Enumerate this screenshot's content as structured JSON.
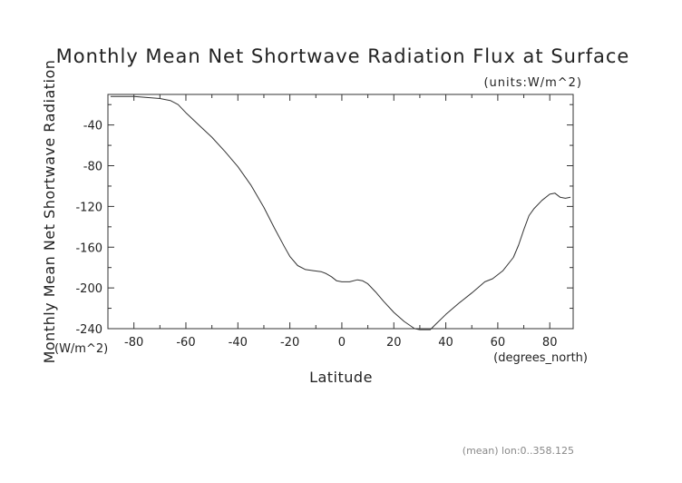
{
  "chart_data": {
    "type": "line",
    "title": "Monthly Mean Net Shortwave Radiation Flux at Surface",
    "units_note": "(units:W/m^2)",
    "xlabel": "Latitude",
    "x_unit": "(degrees_north)",
    "ylabel": "Monthly Mean Net Shortwave Radiation",
    "y_unit": "(W/m^2)",
    "footnote": "(mean) lon:0..358.125",
    "xlim": [
      -90,
      89
    ],
    "ylim": [
      -240,
      -10
    ],
    "x_ticks": [
      -80,
      -60,
      -40,
      -20,
      0,
      20,
      40,
      60,
      80
    ],
    "y_ticks": [
      -40,
      -80,
      -120,
      -160,
      -200,
      -240
    ],
    "grid": false,
    "series": [
      {
        "color": "#333333",
        "x": [
          -89,
          -80,
          -75,
          -70,
          -66,
          -63,
          -60,
          -55,
          -50,
          -45,
          -40,
          -35,
          -30,
          -26,
          -22,
          -20,
          -17,
          -14,
          -11,
          -8,
          -6,
          -4,
          -2,
          0,
          3,
          6,
          8,
          10,
          13,
          16,
          20,
          24,
          28,
          30,
          32,
          34,
          36,
          40,
          45,
          50,
          55,
          58,
          62,
          66,
          68,
          70,
          72,
          74,
          77,
          80,
          82,
          84,
          86,
          88
        ],
        "y": [
          -12,
          -12,
          -13,
          -14,
          -16,
          -20,
          -28,
          -40,
          -52,
          -66,
          -81,
          -99,
          -121,
          -141,
          -160,
          -169,
          -178,
          -182,
          -183,
          -184,
          -186,
          -189,
          -193,
          -194,
          -194,
          -192,
          -193,
          -196,
          -204,
          -213,
          -224,
          -233,
          -240,
          -241,
          -241,
          -241,
          -236,
          -226,
          -215,
          -205,
          -194,
          -191,
          -183,
          -170,
          -158,
          -143,
          -129,
          -122,
          -114,
          -108,
          -107,
          -111,
          -112,
          -111
        ]
      }
    ]
  }
}
